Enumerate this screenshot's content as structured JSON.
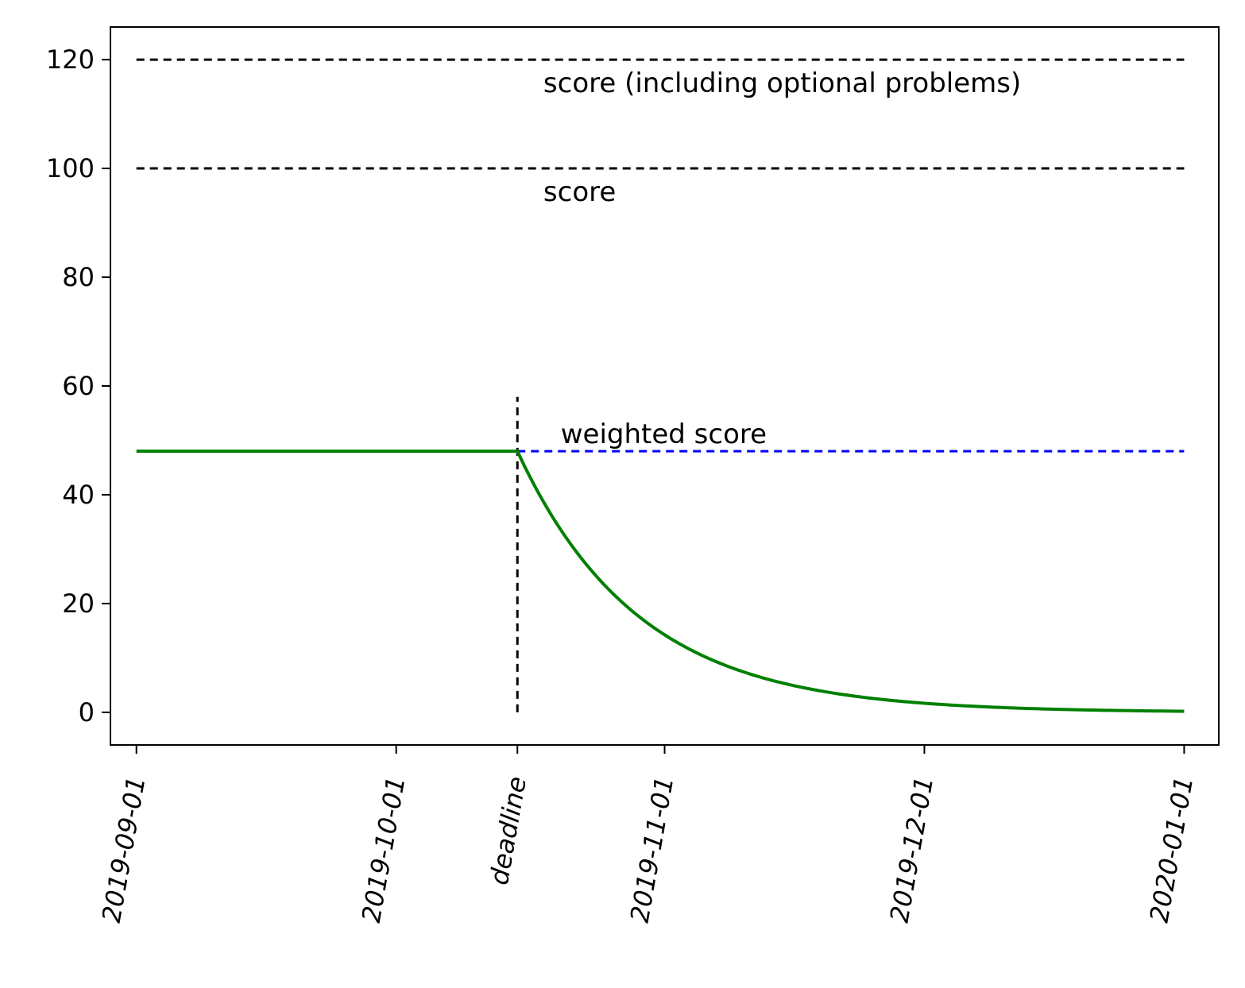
{
  "chart_data": {
    "type": "line",
    "title": "",
    "xlabel": "",
    "ylabel": "",
    "x_axis_type": "date",
    "xlim": [
      "2019-08-29",
      "2020-01-04"
    ],
    "ylim": [
      -6,
      126
    ],
    "grid": false,
    "y_ticks": [
      0,
      20,
      40,
      60,
      80,
      100,
      120
    ],
    "x_ticks": [
      {
        "date": "2019-09-01",
        "label": "2019-09-01",
        "italic": true
      },
      {
        "date": "2019-10-01",
        "label": "2019-10-01",
        "italic": true
      },
      {
        "date": "2019-10-15",
        "label": "deadline",
        "italic": true
      },
      {
        "date": "2019-11-01",
        "label": "2019-11-01",
        "italic": true
      },
      {
        "date": "2019-12-01",
        "label": "2019-12-01",
        "italic": true
      },
      {
        "date": "2019-12-31",
        "label": "2020-01-01",
        "italic": true
      }
    ],
    "series": [
      {
        "color": "#008000",
        "style": "solid",
        "x": [
          "2019-09-01",
          "2019-10-15",
          "2019-10-20",
          "2019-10-25",
          "2019-11-01",
          "2019-11-10",
          "2019-11-20",
          "2019-12-01",
          "2019-12-15",
          "2019-12-31"
        ],
        "y": [
          48,
          48,
          34,
          25,
          15,
          8,
          4,
          1.8,
          0.7,
          0.2
        ]
      },
      {
        "color": "#0000ff",
        "style": "dashed",
        "x": [
          "2019-10-15",
          "2019-12-31"
        ],
        "y": [
          48,
          48
        ]
      },
      {
        "color": "#000000",
        "style": "dashed",
        "x": [
          "2019-09-01",
          "2019-12-31"
        ],
        "y": [
          100,
          100
        ]
      },
      {
        "color": "#000000",
        "style": "dashed",
        "x": [
          "2019-09-01",
          "2019-12-31"
        ],
        "y": [
          120,
          120
        ]
      }
    ],
    "vertical_lines": [
      {
        "x": "2019-10-15",
        "y": [
          0,
          58
        ],
        "color": "#000000",
        "style": "dashed"
      }
    ],
    "annotations": [
      {
        "text": "score (including optional problems)",
        "x": "2019-10-18",
        "y": 114
      },
      {
        "text": "score",
        "x": "2019-10-18",
        "y": 94
      },
      {
        "text": "weighted score",
        "x": "2019-10-20",
        "y": 49.5
      }
    ]
  }
}
